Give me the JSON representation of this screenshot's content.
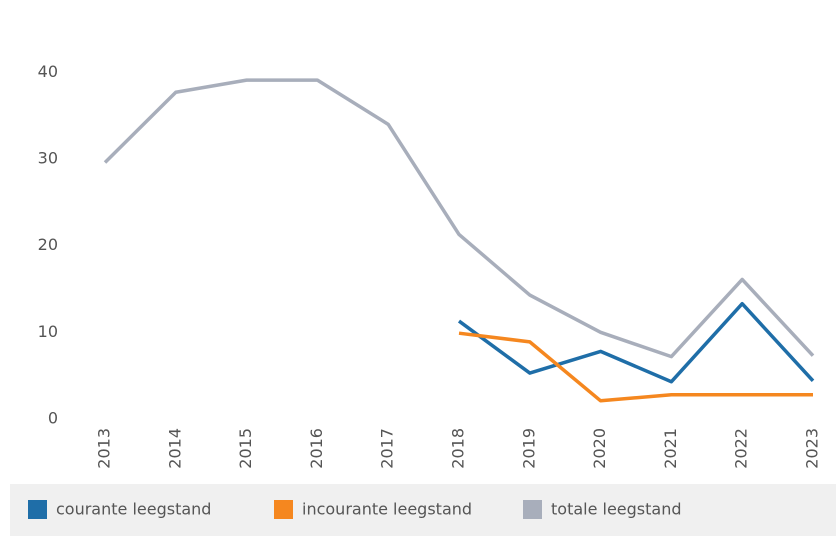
{
  "chart_data": {
    "type": "line",
    "x": [
      "2013",
      "2014",
      "2015",
      "2016",
      "2017",
      "2018",
      "2019",
      "2020",
      "2021",
      "2022",
      "2023"
    ],
    "series": [
      {
        "name": "courante leegstand",
        "color": "#1f6ea8",
        "values": [
          null,
          null,
          null,
          null,
          null,
          11.3,
          5.3,
          7.8,
          4.3,
          13.3,
          4.4
        ]
      },
      {
        "name": "incourante leegstand",
        "color": "#f5871f",
        "values": [
          null,
          null,
          null,
          null,
          null,
          9.9,
          8.9,
          2.1,
          2.8,
          2.8,
          2.8
        ]
      },
      {
        "name": "totale leegstand",
        "color": "#a8aebb",
        "values": [
          29.6,
          37.7,
          39.1,
          39.1,
          34.0,
          21.3,
          14.3,
          10.0,
          7.2,
          16.1,
          7.3
        ]
      }
    ],
    "ylim": [
      0,
      45
    ],
    "yticks": [
      0,
      10,
      20,
      30,
      40
    ],
    "grid": false
  }
}
